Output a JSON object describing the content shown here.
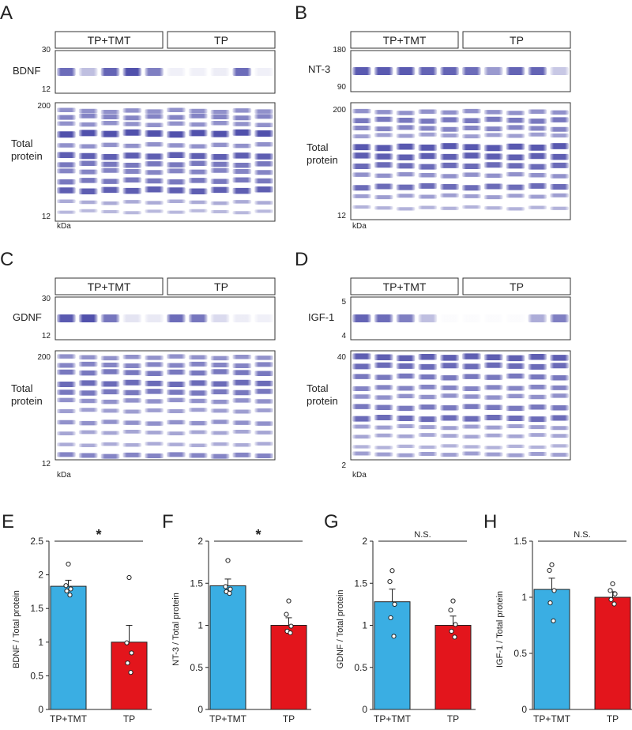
{
  "colors": {
    "tp_tmt": "#3aaee3",
    "tp": "#e3151c",
    "band": "#4848a8",
    "frame": "#333333"
  },
  "blots": [
    {
      "letter": "A",
      "groups": [
        "TP+TMT",
        "TP"
      ],
      "target": "BDNF",
      "target_top": "30",
      "target_bottom": "12",
      "total_label": [
        "Total",
        "protein"
      ],
      "total_top": "200",
      "total_bottom": "12",
      "unit": "kDa"
    },
    {
      "letter": "B",
      "groups": [
        "TP+TMT",
        "TP"
      ],
      "target": "NT-3",
      "target_top": "180",
      "target_bottom": "90",
      "total_label": [
        "Total",
        "protein"
      ],
      "total_top": "200",
      "total_bottom": "12",
      "unit": "kDa"
    },
    {
      "letter": "C",
      "groups": [
        "TP+TMT",
        "TP"
      ],
      "target": "GDNF",
      "target_top": "30",
      "target_bottom": "12",
      "total_label": [
        "Total",
        "protein"
      ],
      "total_top": "200",
      "total_bottom": "12",
      "unit": "kDa"
    },
    {
      "letter": "D",
      "groups": [
        "TP+TMT",
        "TP"
      ],
      "target": "IGF-1",
      "target_top": "5",
      "target_bottom": "4",
      "total_label": [
        "Total",
        "protein"
      ],
      "total_top": "40",
      "total_bottom": "2",
      "unit": "kDa"
    }
  ],
  "chart_data": [
    {
      "letter": "E",
      "type": "bar",
      "categories": [
        "TP+TMT",
        "TP"
      ],
      "values": [
        1.83,
        1.0
      ],
      "errors": [
        0.09,
        0.25
      ],
      "points": [
        [
          2.16,
          1.84,
          1.79,
          1.76,
          1.7
        ],
        [
          1.96,
          0.99,
          0.84,
          0.69,
          0.55
        ]
      ],
      "ylabel": "BDNF / Total protein",
      "ylim": [
        0,
        2.5
      ],
      "yticks": [
        "0",
        "0.5",
        "1",
        "1.5",
        "2",
        "2.5"
      ],
      "tickstep": 0.5,
      "significance": "*"
    },
    {
      "letter": "F",
      "type": "bar",
      "categories": [
        "TP+TMT",
        "TP"
      ],
      "values": [
        1.47,
        1.0
      ],
      "errors": [
        0.08,
        0.09
      ],
      "points": [
        [
          1.77,
          1.46,
          1.43,
          1.4,
          1.38
        ],
        [
          1.29,
          1.13,
          0.99,
          0.93,
          0.91
        ]
      ],
      "ylabel": "NT-3 / Total protein",
      "ylim": [
        0,
        2
      ],
      "yticks": [
        "0",
        "0.5",
        "1",
        "1.5",
        "2"
      ],
      "tickstep": 0.5,
      "significance": "*"
    },
    {
      "letter": "G",
      "type": "bar",
      "categories": [
        "TP+TMT",
        "TP"
      ],
      "values": [
        1.28,
        1.0
      ],
      "errors": [
        0.15,
        0.11
      ],
      "points": [
        [
          1.65,
          1.52,
          1.25,
          1.09,
          0.87
        ],
        [
          1.29,
          1.18,
          1.01,
          0.93,
          0.86
        ]
      ],
      "ylabel": "GDNF / Total protein",
      "ylim": [
        0,
        2
      ],
      "yticks": [
        "0",
        "0.5",
        "1",
        "1.5",
        "2"
      ],
      "tickstep": 0.5,
      "significance": "N.S."
    },
    {
      "letter": "H",
      "type": "bar",
      "categories": [
        "TP+TMT",
        "TP"
      ],
      "values": [
        1.07,
        1.0
      ],
      "errors": [
        0.1,
        0.05
      ],
      "points": [
        [
          1.29,
          1.24,
          1.06,
          0.95,
          0.79
        ],
        [
          1.12,
          1.06,
          1.03,
          0.98,
          0.94
        ]
      ],
      "ylabel": "IGF-1 / Total protein",
      "ylim": [
        0,
        1.5
      ],
      "yticks": [
        "0",
        "0.5",
        "1",
        "1.5"
      ],
      "tickstep": 0.5,
      "significance": "N.S."
    }
  ]
}
